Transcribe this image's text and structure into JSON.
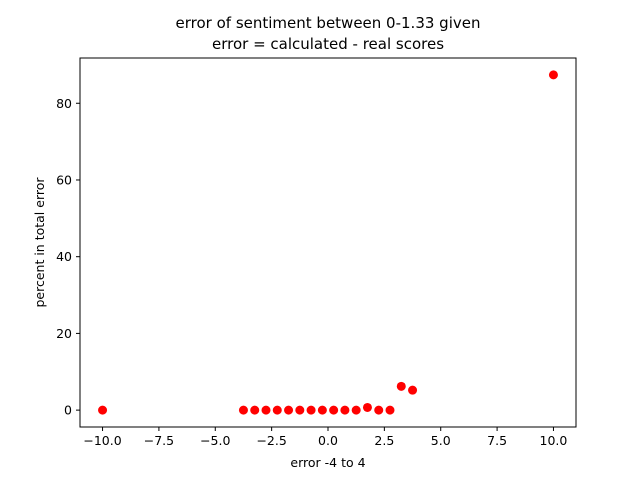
{
  "chart_data": {
    "type": "scatter",
    "title_lines": [
      "error of sentiment between 0-1.33 given",
      "error = calculated - real scores"
    ],
    "xlabel": "error -4 to 4",
    "ylabel": "percent in total error",
    "xlim": [
      -11,
      11
    ],
    "ylim": [
      -4.4,
      91.8
    ],
    "xticks": [
      -10.0,
      -7.5,
      -5.0,
      -2.5,
      0.0,
      2.5,
      5.0,
      7.5,
      10.0
    ],
    "xtick_labels": [
      "−10.0",
      "−7.5",
      "−5.0",
      "−2.5",
      "0.0",
      "2.5",
      "5.0",
      "7.5",
      "10.0"
    ],
    "yticks": [
      0,
      20,
      40,
      60,
      80
    ],
    "ytick_labels": [
      "0",
      "20",
      "40",
      "60",
      "80"
    ],
    "marker_color": "#ff0000",
    "grid": false,
    "legend": false,
    "points": [
      {
        "x": -10.0,
        "y": 0.0
      },
      {
        "x": -3.75,
        "y": 0.0
      },
      {
        "x": -3.25,
        "y": 0.0
      },
      {
        "x": -2.75,
        "y": 0.0
      },
      {
        "x": -2.25,
        "y": 0.0
      },
      {
        "x": -1.75,
        "y": 0.0
      },
      {
        "x": -1.25,
        "y": 0.0
      },
      {
        "x": -0.75,
        "y": 0.0
      },
      {
        "x": -0.25,
        "y": 0.0
      },
      {
        "x": 0.25,
        "y": 0.0
      },
      {
        "x": 0.75,
        "y": 0.0
      },
      {
        "x": 1.25,
        "y": 0.0
      },
      {
        "x": 1.75,
        "y": 0.7
      },
      {
        "x": 2.25,
        "y": 0.0
      },
      {
        "x": 2.75,
        "y": 0.0
      },
      {
        "x": 3.25,
        "y": 6.2
      },
      {
        "x": 3.75,
        "y": 5.2
      },
      {
        "x": 10.0,
        "y": 87.4
      }
    ]
  }
}
